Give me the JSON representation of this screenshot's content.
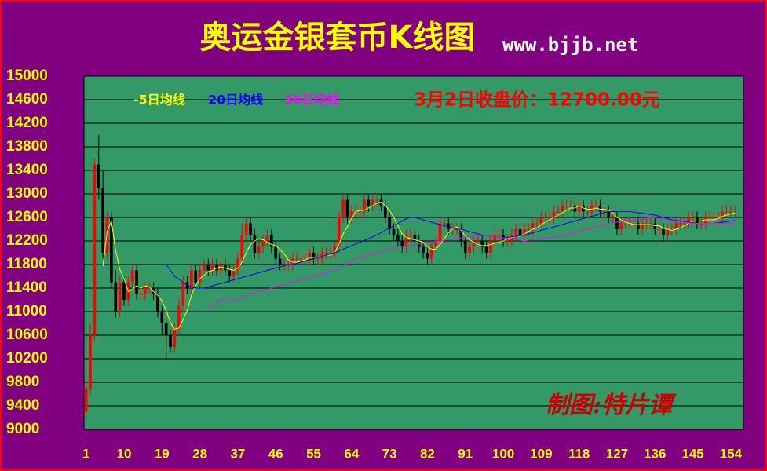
{
  "chart_data": {
    "type": "candlestick",
    "title": "奥运金银套币K线图",
    "subtitle": "www.bjjb.net",
    "annotation": "3月2日收盘价：12700.00元",
    "watermark": "制图:特片谭",
    "background": "#800080",
    "plot_color": "#339966",
    "border_color": "#ff0000",
    "up_color": "#ff0000",
    "down_color": "#000000",
    "grid": true,
    "xlim": [
      0.5,
      157
    ],
    "xticks": [
      1,
      10,
      19,
      28,
      37,
      46,
      55,
      64,
      73,
      82,
      91,
      100,
      109,
      118,
      127,
      136,
      145,
      154
    ],
    "ylim": [
      9000,
      15000
    ],
    "yticks": [
      9000,
      9400,
      9800,
      10200,
      10600,
      11000,
      11400,
      11800,
      12200,
      12600,
      13000,
      13400,
      13800,
      14200,
      14600,
      15000
    ],
    "x": [
      1,
      2,
      3,
      4,
      5,
      6,
      7,
      8,
      9,
      10,
      11,
      12,
      13,
      14,
      15,
      16,
      17,
      18,
      19,
      20,
      21,
      22,
      23,
      24,
      25,
      26,
      27,
      28,
      29,
      30,
      31,
      32,
      33,
      34,
      35,
      36,
      37,
      38,
      39,
      40,
      41,
      42,
      43,
      44,
      45,
      46,
      47,
      48,
      49,
      50,
      51,
      52,
      53,
      54,
      55,
      56,
      57,
      58,
      59,
      60,
      61,
      62,
      63,
      64,
      65,
      66,
      67,
      68,
      69,
      70,
      71,
      72,
      73,
      74,
      75,
      76,
      77,
      78,
      79,
      80,
      81,
      82,
      83,
      84,
      85,
      86,
      87,
      88,
      89,
      90,
      91,
      92,
      93,
      94,
      95,
      96,
      97,
      98,
      99,
      100,
      101,
      102,
      103,
      104,
      105,
      106,
      107,
      108,
      109,
      110,
      111,
      112,
      113,
      114,
      115,
      116,
      117,
      118,
      119,
      120,
      121,
      122,
      123,
      124,
      125,
      126,
      127,
      128,
      129,
      130,
      131,
      132,
      133,
      134,
      135,
      136,
      137,
      138,
      139,
      140,
      141,
      142,
      143,
      144,
      145,
      146,
      147,
      148,
      149,
      150,
      151,
      152,
      153,
      154,
      155
    ],
    "open": [
      9300,
      9700,
      10600,
      13500,
      13100,
      12000,
      12600,
      11500,
      11000,
      11500,
      11200,
      11500,
      11700,
      11300,
      11300,
      11400,
      11400,
      11300,
      11000,
      10800,
      10600,
      10400,
      10700,
      11100,
      11500,
      11400,
      11700,
      11500,
      11700,
      11800,
      11700,
      11800,
      11700,
      11800,
      11700,
      11600,
      11700,
      11900,
      12300,
      12500,
      12300,
      12000,
      12100,
      12200,
      12300,
      12100,
      11900,
      11800,
      11800,
      11800,
      11900,
      11900,
      11900,
      11900,
      12000,
      11900,
      11900,
      12000,
      12000,
      12000,
      12100,
      12600,
      12900,
      12600,
      12700,
      12700,
      12700,
      12900,
      12800,
      12900,
      12900,
      12800,
      12600,
      12400,
      12300,
      12200,
      12100,
      12300,
      12300,
      12200,
      12100,
      12000,
      11900,
      12100,
      12200,
      12500,
      12500,
      12400,
      12400,
      12400,
      12200,
      12000,
      12100,
      12200,
      12200,
      12100,
      12000,
      12200,
      12300,
      12300,
      12200,
      12200,
      12300,
      12400,
      12300,
      12400,
      12400,
      12500,
      12500,
      12600,
      12600,
      12600,
      12700,
      12700,
      12800,
      12800,
      12800,
      12700,
      12800,
      12700,
      12700,
      12800,
      12800,
      12700,
      12700,
      12600,
      12600,
      12400,
      12500,
      12500,
      12500,
      12500,
      12400,
      12500,
      12500,
      12500,
      12400,
      12400,
      12300,
      12400,
      12400,
      12500,
      12500,
      12500,
      12600,
      12600,
      12500,
      12500,
      12600,
      12600,
      12600,
      12600,
      12700,
      12700,
      12700
    ],
    "high": [
      9800,
      10800,
      13600,
      14000,
      13400,
      12700,
      12700,
      11700,
      11600,
      11600,
      11600,
      11800,
      11800,
      11400,
      11500,
      11500,
      11500,
      11400,
      11100,
      10900,
      10700,
      10800,
      11200,
      11600,
      11600,
      11800,
      11800,
      11800,
      11900,
      11900,
      11900,
      11900,
      11900,
      11900,
      11800,
      11800,
      12000,
      12500,
      12600,
      12600,
      12400,
      12200,
      12300,
      12400,
      12400,
      12200,
      12000,
      11900,
      11900,
      12000,
      12000,
      12000,
      12000,
      12100,
      12100,
      12000,
      12100,
      12100,
      12100,
      12200,
      12700,
      13000,
      13000,
      12800,
      12800,
      12800,
      13000,
      13000,
      13000,
      13000,
      13000,
      12900,
      12700,
      12500,
      12400,
      12300,
      12400,
      12400,
      12400,
      12300,
      12200,
      12100,
      12200,
      12300,
      12600,
      12600,
      12600,
      12500,
      12500,
      12500,
      12300,
      12200,
      12300,
      12300,
      12300,
      12200,
      12300,
      12400,
      12400,
      12400,
      12300,
      12400,
      12500,
      12500,
      12500,
      12500,
      12600,
      12600,
      12700,
      12700,
      12700,
      12800,
      12800,
      12900,
      12900,
      12900,
      12900,
      12900,
      12900,
      12800,
      12900,
      12900,
      12900,
      12800,
      12800,
      12700,
      12700,
      12600,
      12600,
      12600,
      12600,
      12600,
      12600,
      12600,
      12600,
      12600,
      12500,
      12500,
      12500,
      12500,
      12600,
      12600,
      12600,
      12700,
      12700,
      12700,
      12600,
      12700,
      12700,
      12700,
      12700,
      12800,
      12800,
      12800,
      12800
    ],
    "low": [
      9200,
      9600,
      10500,
      12900,
      11900,
      11900,
      11400,
      10900,
      10900,
      11100,
      11100,
      11400,
      11200,
      11200,
      11200,
      11300,
      11200,
      10900,
      10600,
      10200,
      10300,
      10300,
      10600,
      11000,
      11300,
      11300,
      11400,
      11400,
      11600,
      11600,
      11600,
      11600,
      11600,
      11600,
      11500,
      11500,
      11600,
      11800,
      12200,
      12200,
      11900,
      11900,
      12000,
      12100,
      12000,
      11800,
      11700,
      11700,
      11700,
      11700,
      11800,
      11800,
      11800,
      11800,
      11800,
      11800,
      11800,
      11900,
      11900,
      11900,
      12000,
      12500,
      12500,
      12500,
      12600,
      12600,
      12600,
      12700,
      12700,
      12800,
      12700,
      12500,
      12300,
      12200,
      12100,
      12000,
      12000,
      12200,
      12100,
      12000,
      11900,
      11800,
      11800,
      12000,
      12100,
      12400,
      12300,
      12300,
      12300,
      12100,
      11900,
      11900,
      12000,
      12100,
      12000,
      11900,
      11900,
      12100,
      12200,
      12100,
      12100,
      12100,
      12200,
      12200,
      12200,
      12300,
      12300,
      12400,
      12400,
      12500,
      12500,
      12500,
      12600,
      12600,
      12700,
      12700,
      12600,
      12600,
      12600,
      12600,
      12600,
      12700,
      12600,
      12600,
      12500,
      12500,
      12300,
      12300,
      12400,
      12400,
      12400,
      12300,
      12300,
      12400,
      12400,
      12300,
      12300,
      12200,
      12200,
      12300,
      12300,
      12400,
      12400,
      12400,
      12500,
      12400,
      12400,
      12400,
      12500,
      12500,
      12500,
      12500,
      12600,
      12600,
      12600
    ],
    "close": [
      9700,
      10600,
      13500,
      13100,
      12000,
      12600,
      11500,
      11000,
      11500,
      11200,
      11500,
      11700,
      11300,
      11300,
      11400,
      11400,
      11300,
      11000,
      10800,
      10600,
      10400,
      10700,
      11100,
      11500,
      11400,
      11700,
      11500,
      11700,
      11800,
      11700,
      11800,
      11700,
      11800,
      11700,
      11600,
      11700,
      11900,
      12300,
      12500,
      12300,
      12000,
      12100,
      12200,
      12300,
      12100,
      11900,
      11800,
      11800,
      11800,
      11900,
      11900,
      11900,
      11900,
      12000,
      11900,
      11900,
      12000,
      12000,
      12000,
      12100,
      12600,
      12900,
      12600,
      12700,
      12700,
      12700,
      12900,
      12800,
      12900,
      12900,
      12800,
      12600,
      12400,
      12300,
      12200,
      12100,
      12300,
      12300,
      12200,
      12100,
      12000,
      11900,
      12100,
      12200,
      12500,
      12500,
      12400,
      12400,
      12400,
      12200,
      12000,
      12100,
      12200,
      12200,
      12100,
      12000,
      12200,
      12300,
      12300,
      12200,
      12200,
      12300,
      12400,
      12300,
      12400,
      12400,
      12500,
      12500,
      12600,
      12600,
      12600,
      12700,
      12700,
      12800,
      12800,
      12800,
      12700,
      12800,
      12700,
      12700,
      12800,
      12800,
      12700,
      12700,
      12600,
      12600,
      12400,
      12500,
      12500,
      12500,
      12500,
      12400,
      12500,
      12500,
      12500,
      12400,
      12400,
      12300,
      12400,
      12400,
      12500,
      12500,
      12500,
      12600,
      12600,
      12500,
      12500,
      12600,
      12600,
      12600,
      12600,
      12700,
      12700,
      12700,
      12700
    ],
    "series": [
      {
        "name": "-5日均线",
        "color": "#ffff00",
        "values": [
          null,
          null,
          null,
          null,
          11780,
          12360,
          12540,
          12040,
          11720,
          11560,
          11340,
          11380,
          11440,
          11400,
          11440,
          11420,
          11340,
          11280,
          11180,
          11020,
          10820,
          10700,
          10720,
          10860,
          11020,
          11280,
          11440,
          11560,
          11620,
          11680,
          11700,
          11740,
          11760,
          11740,
          11720,
          11700,
          11740,
          11840,
          12000,
          12140,
          12200,
          12240,
          12220,
          12180,
          12140,
          12120,
          12060,
          11980,
          11880,
          11840,
          11840,
          11860,
          11880,
          11920,
          11920,
          11920,
          11940,
          11960,
          11960,
          12000,
          12140,
          12320,
          12440,
          12580,
          12700,
          12720,
          12720,
          12760,
          12800,
          12840,
          12860,
          12800,
          12720,
          12600,
          12460,
          12320,
          12260,
          12240,
          12220,
          12200,
          12180,
          12100,
          12060,
          12060,
          12140,
          12240,
          12340,
          12400,
          12440,
          12380,
          12280,
          12220,
          12180,
          12140,
          12120,
          12120,
          12140,
          12160,
          12180,
          12200,
          12240,
          12260,
          12280,
          12280,
          12320,
          12360,
          12400,
          12420,
          12480,
          12520,
          12560,
          12600,
          12640,
          12680,
          12720,
          12760,
          12760,
          12800,
          12760,
          12740,
          12740,
          12760,
          12740,
          12740,
          12720,
          12680,
          12600,
          12560,
          12520,
          12500,
          12480,
          12480,
          12480,
          12480,
          12480,
          12460,
          12460,
          12420,
          12400,
          12380,
          12400,
          12420,
          12460,
          12500,
          12540,
          12540,
          12540,
          12560,
          12560,
          12560,
          12580,
          12620,
          12640,
          12660,
          12680
        ]
      },
      {
        "name": "20日均线",
        "color": "#0000ff",
        "values": [
          null,
          null,
          null,
          null,
          null,
          null,
          null,
          null,
          null,
          null,
          null,
          null,
          null,
          null,
          null,
          null,
          null,
          null,
          null,
          11800,
          11700,
          11600,
          11550,
          11500,
          11450,
          11420,
          11400,
          11400,
          11400,
          11420,
          11440,
          11460,
          11480,
          11500,
          11520,
          11540,
          11560,
          11580,
          11600,
          11620,
          11640,
          11660,
          11680,
          11700,
          11720,
          11740,
          11760,
          11780,
          11800,
          11800,
          11820,
          11840,
          11860,
          11880,
          11900,
          11920,
          11940,
          11960,
          11980,
          12000,
          12030,
          12060,
          12090,
          12120,
          12150,
          12180,
          12210,
          12240,
          12270,
          12300,
          12340,
          12380,
          12420,
          12460,
          12500,
          12540,
          12580,
          12600,
          12600,
          12580,
          12560,
          12540,
          12520,
          12500,
          12480,
          12460,
          12440,
          12420,
          12400,
          12400,
          12380,
          12360,
          12340,
          12320,
          12300,
          12290,
          12280,
          12270,
          12260,
          12250,
          12260,
          12270,
          12280,
          12290,
          12300,
          12320,
          12340,
          12360,
          12380,
          12400,
          12420,
          12440,
          12460,
          12480,
          12500,
          12520,
          12540,
          12560,
          12580,
          12600,
          12620,
          12640,
          12660,
          12680,
          12700,
          12700,
          12700,
          12700,
          12700,
          12700,
          12690,
          12680,
          12670,
          12660,
          12650,
          12640,
          12620,
          12600,
          12580,
          12560,
          12550,
          12540,
          12530,
          12520,
          12510,
          12500,
          12500,
          12500,
          12500,
          12500,
          12510,
          12520,
          12530,
          12540,
          12550
        ]
      },
      {
        "name": "30日均线",
        "color": "#ff00ff",
        "values": [
          null,
          null,
          null,
          null,
          null,
          null,
          null,
          null,
          null,
          null,
          null,
          null,
          null,
          null,
          null,
          null,
          null,
          null,
          null,
          null,
          null,
          null,
          null,
          null,
          null,
          null,
          null,
          null,
          null,
          11050,
          11100,
          11150,
          11200,
          11200,
          11180,
          11200,
          11220,
          11240,
          11270,
          11300,
          11320,
          11340,
          11360,
          11380,
          11400,
          11420,
          11440,
          11460,
          11480,
          11500,
          11520,
          11540,
          11560,
          11580,
          11600,
          11620,
          11640,
          11660,
          11680,
          11700,
          11740,
          11780,
          11820,
          11860,
          11900,
          11920,
          11940,
          11960,
          11980,
          12000,
          12020,
          12040,
          12060,
          12080,
          12100,
          12110,
          12120,
          12130,
          12140,
          12150,
          12160,
          12170,
          12180,
          12190,
          12200,
          12210,
          12220,
          12230,
          12240,
          12250,
          12260,
          12270,
          12280,
          12290,
          12300,
          12290,
          12280,
          12270,
          12260,
          12250,
          12240,
          12230,
          12220,
          12210,
          12200,
          12210,
          12220,
          12230,
          12240,
          12250,
          12260,
          12270,
          12280,
          12290,
          12300,
          12320,
          12340,
          12360,
          12380,
          12400,
          12420,
          12440,
          12460,
          12480,
          12500,
          12510,
          12520,
          12530,
          12540,
          12550,
          12560,
          12570,
          12580,
          12590,
          12600,
          12590,
          12580,
          12570,
          12560,
          12550,
          12540,
          12530,
          12520,
          12510,
          12500,
          12500,
          12500,
          12500,
          12500,
          12500,
          12500,
          12500,
          12500,
          12500,
          12500
        ]
      }
    ]
  }
}
